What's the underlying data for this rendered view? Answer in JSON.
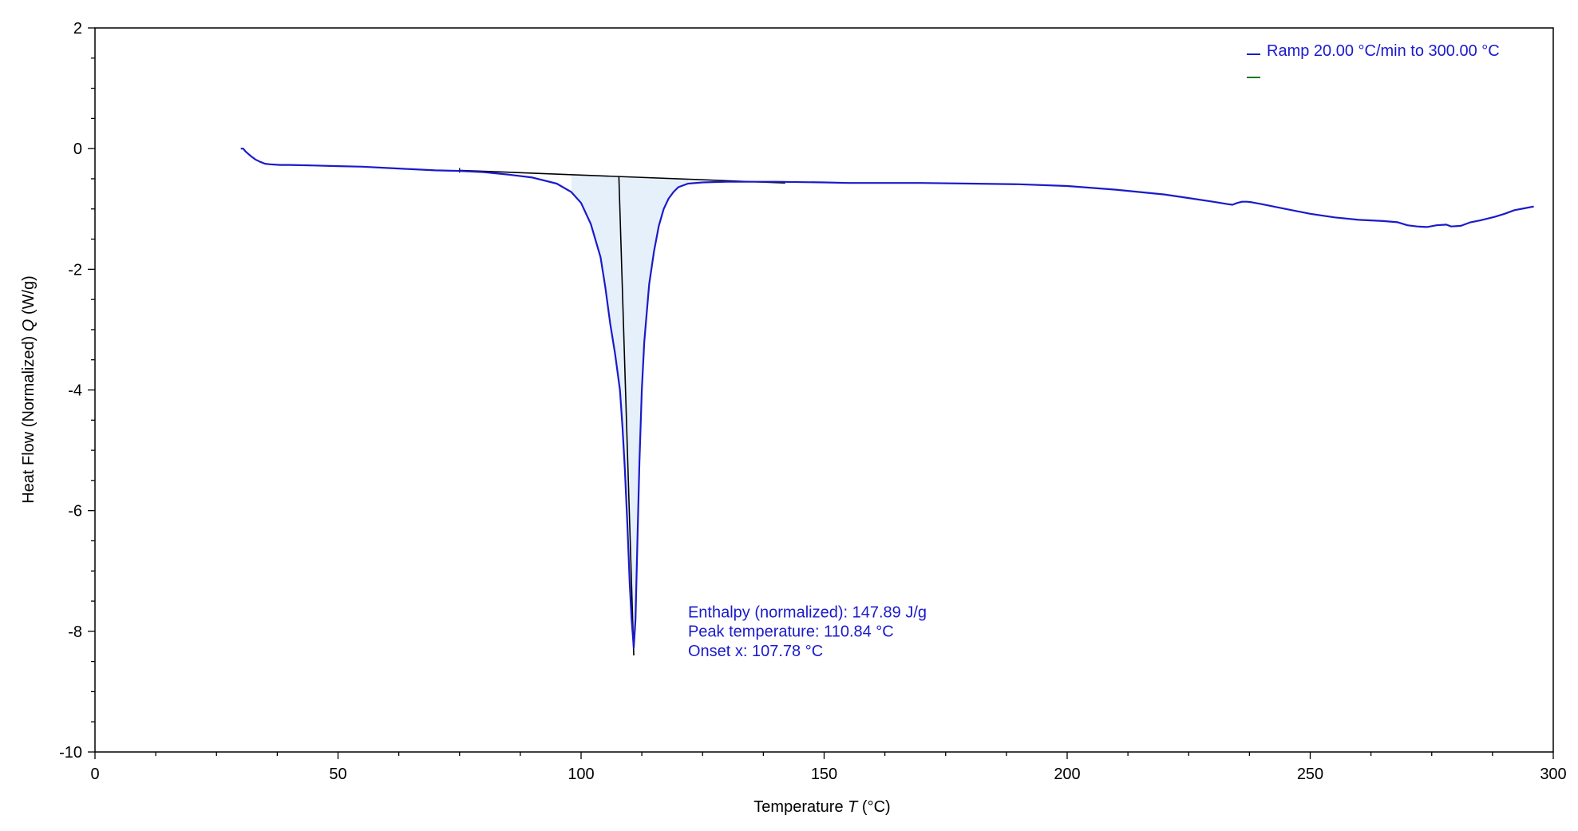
{
  "chart_data": {
    "type": "line",
    "title": "",
    "xlabel_prefix": "Temperature ",
    "xlabel_var": "T",
    "xlabel_unit": "  (°C)",
    "ylabel_prefix": "Heat Flow (Normalized) ",
    "ylabel_var": "Q",
    "ylabel_unit": "  (W/g)",
    "xlim": [
      0,
      300
    ],
    "ylim": [
      -10,
      2
    ],
    "x_ticks": [
      0,
      50,
      100,
      150,
      200,
      250,
      300
    ],
    "x_tick_labels": [
      "0",
      "50",
      "100",
      "150",
      "200",
      "250",
      "300"
    ],
    "y_ticks": [
      2,
      0,
      -2,
      -4,
      -6,
      -8,
      -10
    ],
    "y_tick_labels": [
      "2",
      "0",
      "-2",
      "-4",
      "-6",
      "-8",
      "-10"
    ],
    "grid": false,
    "legend_position": "top-right",
    "legend": [
      {
        "label": "Ramp 20.00 °C/min to 300.00 °C",
        "color": "#1a1acc"
      },
      {
        "label": "",
        "color": "#1a7a1a"
      }
    ],
    "series": [
      {
        "name": "Ramp 20.00 °C/min to 300.00 °C",
        "color": "#1a1acc",
        "x": [
          30,
          30.5,
          31,
          32,
          33,
          34,
          35,
          36,
          38,
          40,
          45,
          50,
          55,
          60,
          65,
          70,
          75,
          80,
          85,
          90,
          95,
          98,
          100,
          102,
          104,
          105,
          106,
          107,
          108,
          108.5,
          109,
          109.5,
          110,
          110.4,
          110.84,
          111.2,
          111.6,
          112,
          112.5,
          113,
          114,
          115,
          116,
          117,
          118,
          119,
          120,
          122,
          125,
          130,
          140,
          150,
          155,
          160,
          170,
          180,
          190,
          200,
          210,
          220,
          225,
          230,
          233,
          234,
          235,
          236,
          237,
          238,
          240,
          245,
          250,
          255,
          260,
          265,
          268,
          270,
          272,
          274,
          276,
          278,
          279,
          281,
          283,
          285,
          288,
          290,
          292,
          294,
          296
        ],
        "y": [
          0.0,
          0.0,
          -0.05,
          -0.12,
          -0.18,
          -0.22,
          -0.25,
          -0.26,
          -0.27,
          -0.27,
          -0.28,
          -0.29,
          -0.3,
          -0.32,
          -0.34,
          -0.36,
          -0.37,
          -0.39,
          -0.43,
          -0.48,
          -0.58,
          -0.72,
          -0.9,
          -1.25,
          -1.8,
          -2.3,
          -2.9,
          -3.4,
          -4.0,
          -4.6,
          -5.3,
          -6.2,
          -7.2,
          -7.8,
          -8.27,
          -7.8,
          -6.5,
          -5.2,
          -4.0,
          -3.2,
          -2.25,
          -1.7,
          -1.28,
          -1.0,
          -0.83,
          -0.72,
          -0.64,
          -0.58,
          -0.56,
          -0.55,
          -0.55,
          -0.56,
          -0.57,
          -0.57,
          -0.57,
          -0.58,
          -0.59,
          -0.62,
          -0.68,
          -0.76,
          -0.82,
          -0.88,
          -0.92,
          -0.93,
          -0.9,
          -0.88,
          -0.88,
          -0.89,
          -0.92,
          -1.0,
          -1.08,
          -1.14,
          -1.18,
          -1.2,
          -1.22,
          -1.27,
          -1.29,
          -1.3,
          -1.27,
          -1.26,
          -1.29,
          -1.28,
          -1.22,
          -1.19,
          -1.13,
          -1.08,
          -1.02,
          -0.99,
          -0.96
        ]
      }
    ],
    "baseline": {
      "x": [
        75,
        142
      ],
      "y": [
        -0.36,
        -0.57
      ],
      "color": "#000000"
    },
    "onset_line": {
      "x": [
        107.78,
        110.84
      ],
      "y": [
        -0.47,
        -8.4
      ],
      "color": "#000000"
    },
    "shaded_area": {
      "from_x": 96,
      "to_x": 124,
      "color": "#e6f0fb"
    },
    "annotations": [
      {
        "text": "Enthalpy (normalized): 147.89 J/g",
        "x": 122,
        "y": -7.77,
        "color": "#1a1acc"
      },
      {
        "text": "Peak temperature: 110.84 °C",
        "x": 122,
        "y": -8.09,
        "color": "#1a1acc"
      },
      {
        "text": "Onset x: 107.78 °C",
        "x": 122,
        "y": -8.41,
        "color": "#1a1acc"
      }
    ]
  }
}
